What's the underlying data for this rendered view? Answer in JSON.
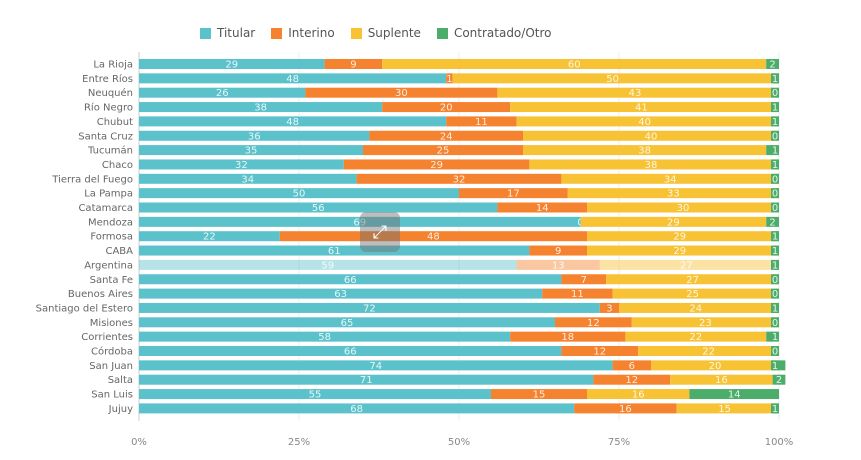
{
  "chart_data": {
    "type": "bar",
    "orientation": "horizontal",
    "stacked": "percent",
    "categories": [
      "La Rioja",
      "Entre Ríos",
      "Neuquén",
      "Río Negro",
      "Chubut",
      "Santa Cruz",
      "Tucumán",
      "Chaco",
      "Tierra del Fuego",
      "La Pampa",
      "Catamarca",
      "Mendoza",
      "Formosa",
      "CABA",
      "Argentina",
      "Santa Fe",
      "Buenos Aires",
      "Santiago del Estero",
      "Misiones",
      "Corrientes",
      "Córdoba",
      "San Juan",
      "Salta",
      "San Luis",
      "Jujuy"
    ],
    "series": [
      {
        "name": "Titular",
        "color": "#5bc2cb",
        "values": [
          29,
          48,
          26,
          38,
          48,
          36,
          35,
          32,
          34,
          50,
          56,
          69,
          22,
          61,
          59,
          66,
          63,
          72,
          65,
          58,
          66,
          74,
          71,
          55,
          68
        ]
      },
      {
        "name": "Interino",
        "color": "#f5822e",
        "values": [
          9,
          1,
          30,
          20,
          11,
          24,
          25,
          29,
          32,
          17,
          14,
          0,
          48,
          9,
          13,
          7,
          11,
          3,
          12,
          18,
          12,
          6,
          12,
          15,
          16
        ]
      },
      {
        "name": "Suplente",
        "color": "#f8c235",
        "values": [
          60,
          50,
          43,
          41,
          40,
          40,
          38,
          38,
          34,
          33,
          30,
          29,
          29,
          29,
          27,
          27,
          25,
          24,
          23,
          22,
          22,
          20,
          16,
          16,
          15
        ]
      },
      {
        "name": "Contratado/Otro",
        "color": "#4cad6b",
        "values": [
          2,
          1,
          0,
          1,
          1,
          0,
          1,
          1,
          0,
          0,
          0,
          2,
          1,
          1,
          1,
          0,
          0,
          1,
          0,
          1,
          0,
          1,
          2,
          14,
          1
        ]
      }
    ],
    "highlighted_category": "Argentina",
    "xticks": [
      "0%",
      "25%",
      "50%",
      "75%",
      "100%"
    ],
    "xlim": [
      0,
      100
    ],
    "grid": true,
    "legend": "top"
  }
}
